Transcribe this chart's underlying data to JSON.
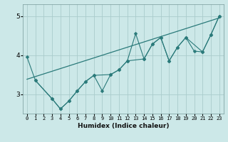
{
  "title": "",
  "xlabel": "Humidex (Indice chaleur)",
  "bg_color": "#cce8e8",
  "grid_color": "#aacccc",
  "line_color": "#2a7a7a",
  "xlim": [
    -0.5,
    23.5
  ],
  "ylim": [
    2.5,
    5.3
  ],
  "yticks": [
    3,
    4,
    5
  ],
  "xticks": [
    0,
    1,
    2,
    3,
    4,
    5,
    6,
    7,
    8,
    9,
    10,
    11,
    12,
    13,
    14,
    15,
    16,
    17,
    18,
    19,
    20,
    21,
    22,
    23
  ],
  "series1": {
    "x": [
      0,
      1,
      3,
      4,
      5,
      6,
      7,
      8,
      9,
      10,
      11,
      12,
      13,
      14,
      15,
      16,
      17,
      18,
      19,
      20,
      21,
      22,
      23
    ],
    "y": [
      3.95,
      3.35,
      2.88,
      2.62,
      2.82,
      3.08,
      3.32,
      3.48,
      3.08,
      3.5,
      3.62,
      3.85,
      4.55,
      3.9,
      4.28,
      4.45,
      3.85,
      4.2,
      4.45,
      4.1,
      4.08,
      4.52,
      5.0
    ]
  },
  "series2": {
    "x": [
      1,
      3,
      4,
      5,
      6,
      7,
      8,
      10,
      11,
      12,
      14,
      15,
      16,
      17,
      18,
      19,
      21,
      22,
      23
    ],
    "y": [
      3.35,
      2.88,
      2.62,
      2.82,
      3.08,
      3.32,
      3.48,
      3.5,
      3.62,
      3.85,
      3.9,
      4.28,
      4.45,
      3.85,
      4.2,
      4.45,
      4.08,
      4.52,
      5.0
    ]
  },
  "trend": {
    "x": [
      0,
      23
    ],
    "y": [
      3.38,
      4.95
    ]
  }
}
